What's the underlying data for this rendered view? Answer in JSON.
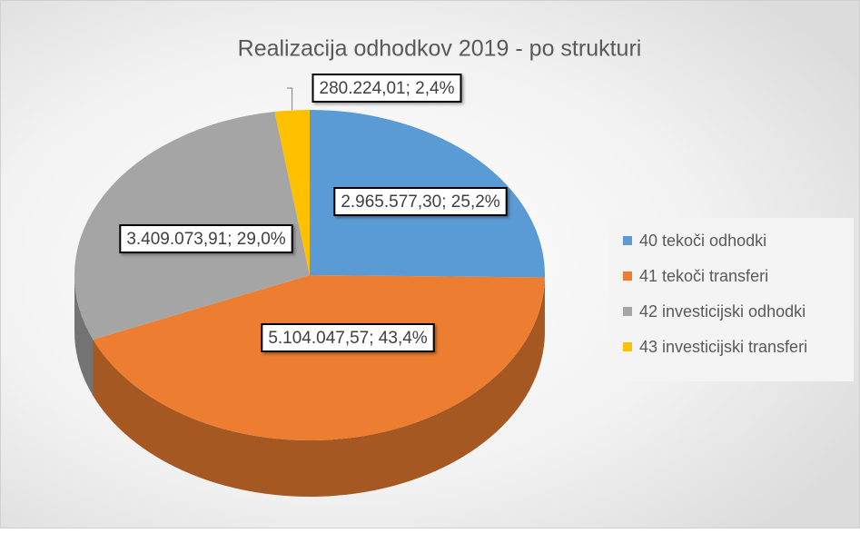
{
  "chart_data": {
    "type": "pie",
    "title": "Realizacija odhodkov 2019 - po strukturi",
    "categories": [
      "40 tekoči odhodki",
      "41 tekoči transferi",
      "42 investicijski odhodki",
      "43 investicijski transferi"
    ],
    "values": [
      2965577.3,
      5104047.57,
      3409073.91,
      280224.01
    ],
    "value_labels": [
      "2.965.577,30; 25,2%",
      "5.104.047,57; 43,4%",
      "3.409.073,91; 29,0%",
      "280.224,01; 2,4%"
    ],
    "colors": [
      "#5b9bd5",
      "#ed7d31",
      "#a5a5a5",
      "#ffc000"
    ],
    "legend": "right"
  }
}
